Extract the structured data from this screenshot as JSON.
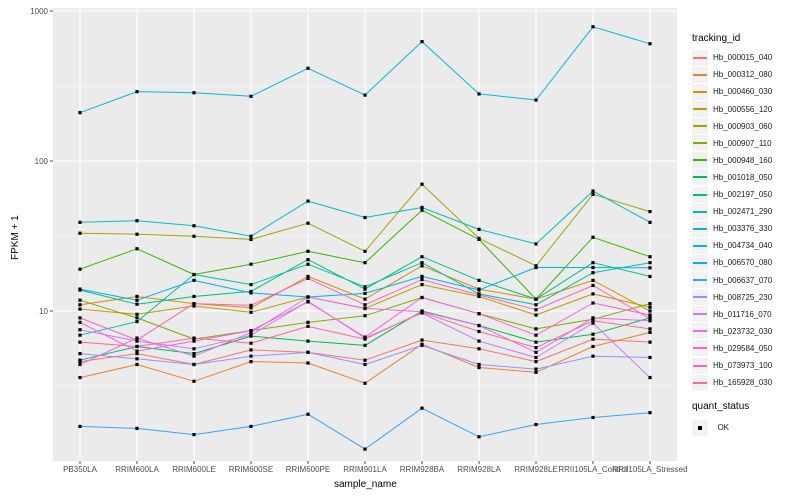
{
  "chart_data": {
    "type": "line",
    "title": "",
    "xlabel": "sample_name",
    "ylabel": "FPKM + 1",
    "y_scale": "log10",
    "ylim": [
      1,
      1050
    ],
    "y_ticks": [
      10,
      100,
      1000
    ],
    "y_minor_ticks": [
      3.162,
      31.62,
      316.2
    ],
    "grid": true,
    "legend_position": "right",
    "colors": {
      "panel_bg": "#EBEBEB",
      "grid": "#FFFFFF",
      "tick_text": "#4D4D4D",
      "point": "#000000",
      "legend_key_bg": "#F2F2F2"
    },
    "categories": [
      "PB350LA",
      "RRIM600LA",
      "RRIM600LE",
      "RRIM600SE",
      "RRIM600PE",
      "RRIM901LA",
      "RRIM928BA",
      "RRIM928LA",
      "RRIM928LE",
      "RRII105LA_Control",
      "RRII105LA_Stressed"
    ],
    "series": [
      {
        "name": "Hb_000015_040",
        "color": "#F8766D",
        "values": [
          4.6,
          5.2,
          4.4,
          5.5,
          5.3,
          4.7,
          6.4,
          5.6,
          4.6,
          6.5,
          6.2
        ]
      },
      {
        "name": "Hb_000312_080",
        "color": "#EA8331",
        "values": [
          3.6,
          4.4,
          3.4,
          4.6,
          4.5,
          3.3,
          6.0,
          4.2,
          3.9,
          5.8,
          7.2
        ]
      },
      {
        "name": "Hb_000460_030",
        "color": "#D89000",
        "values": [
          11.0,
          12.5,
          11.2,
          10.5,
          17.0,
          12.0,
          20.0,
          14.0,
          12.0,
          16.0,
          10.0
        ]
      },
      {
        "name": "Hb_000556_120",
        "color": "#C09B00",
        "values": [
          10.3,
          9.5,
          10.8,
          9.8,
          12.4,
          10.4,
          15.0,
          12.5,
          9.4,
          13.0,
          10.6
        ]
      },
      {
        "name": "Hb_000903_060",
        "color": "#A3A500",
        "values": [
          33.0,
          32.5,
          31.5,
          30.0,
          38.5,
          25.0,
          70.0,
          30.5,
          20.0,
          60.0,
          46.0
        ]
      },
      {
        "name": "Hb_000907_110",
        "color": "#7CAE00",
        "values": [
          11.8,
          9.0,
          6.5,
          7.4,
          8.4,
          9.3,
          12.3,
          9.6,
          7.6,
          8.8,
          11.2
        ]
      },
      {
        "name": "Hb_000948_160",
        "color": "#39B600",
        "values": [
          19.0,
          26.0,
          17.5,
          20.5,
          25.0,
          21.0,
          47.0,
          30.0,
          12.0,
          31.0,
          23.0
        ]
      },
      {
        "name": "Hb_001018_050",
        "color": "#00BB4E",
        "values": [
          4.7,
          5.8,
          5.2,
          6.8,
          6.3,
          5.9,
          10.0,
          8.0,
          6.2,
          7.0,
          9.0
        ]
      },
      {
        "name": "Hb_002197_050",
        "color": "#00BF7D",
        "values": [
          13.8,
          11.1,
          12.5,
          13.5,
          22.0,
          14.0,
          23.0,
          16.0,
          12.0,
          21.0,
          17.0
        ]
      },
      {
        "name": "Hb_002471_290",
        "color": "#00C1A3",
        "values": [
          6.9,
          8.5,
          17.5,
          15.0,
          20.5,
          14.5,
          21.0,
          13.0,
          11.0,
          18.0,
          21.0
        ]
      },
      {
        "name": "Hb_003376_330",
        "color": "#00BFC4",
        "values": [
          39.0,
          40.0,
          37.0,
          31.5,
          54.0,
          42.0,
          49.0,
          35.0,
          28.0,
          63.0,
          39.0
        ]
      },
      {
        "name": "Hb_004734_040",
        "color": "#00BAE0",
        "values": [
          210,
          290,
          285,
          270,
          415,
          275,
          625,
          280,
          255,
          785,
          605
        ]
      },
      {
        "name": "Hb_006570_080",
        "color": "#00B0F6",
        "values": [
          14.0,
          11.8,
          16.0,
          13.2,
          12.4,
          13.1,
          17.0,
          13.8,
          19.5,
          19.5,
          19.4
        ]
      },
      {
        "name": "Hb_006637_070",
        "color": "#35A2FF",
        "values": [
          1.7,
          1.65,
          1.5,
          1.7,
          2.05,
          1.2,
          2.25,
          1.45,
          1.75,
          1.95,
          2.1
        ]
      },
      {
        "name": "Hb_008725_230",
        "color": "#9590FF",
        "values": [
          5.2,
          4.8,
          4.4,
          5.0,
          5.3,
          4.4,
          5.9,
          4.4,
          4.1,
          5.0,
          4.9
        ]
      },
      {
        "name": "Hb_011716_070",
        "color": "#C77CFF",
        "values": [
          7.5,
          6.3,
          5.6,
          6.9,
          11.6,
          6.6,
          9.7,
          6.3,
          4.9,
          8.3,
          3.6
        ]
      },
      {
        "name": "Hb_023732_030",
        "color": "#E76BF3",
        "values": [
          4.4,
          6.6,
          5.0,
          7.2,
          12.4,
          10.4,
          9.9,
          8.0,
          5.3,
          9.0,
          8.6
        ]
      },
      {
        "name": "Hb_029584_050",
        "color": "#FA62DB",
        "values": [
          8.4,
          5.4,
          6.3,
          7.4,
          11.5,
          6.7,
          12.3,
          9.6,
          6.9,
          11.3,
          9.4
        ]
      },
      {
        "name": "Hb_073973_100",
        "color": "#FF62BC",
        "values": [
          9.0,
          6.4,
          11.2,
          10.9,
          16.5,
          11.0,
          16.2,
          12.8,
          10.2,
          14.8,
          8.9
        ]
      },
      {
        "name": "Hb_165928_030",
        "color": "#FF6A98",
        "values": [
          6.2,
          5.8,
          6.6,
          6.1,
          7.9,
          6.5,
          9.8,
          7.3,
          5.7,
          8.6,
          7.6
        ]
      }
    ],
    "legend": {
      "color_title": "tracking_id",
      "shape_title": "quant_status",
      "shape_items": [
        {
          "label": "OK",
          "shape": "square",
          "color": "#000000"
        }
      ]
    }
  }
}
